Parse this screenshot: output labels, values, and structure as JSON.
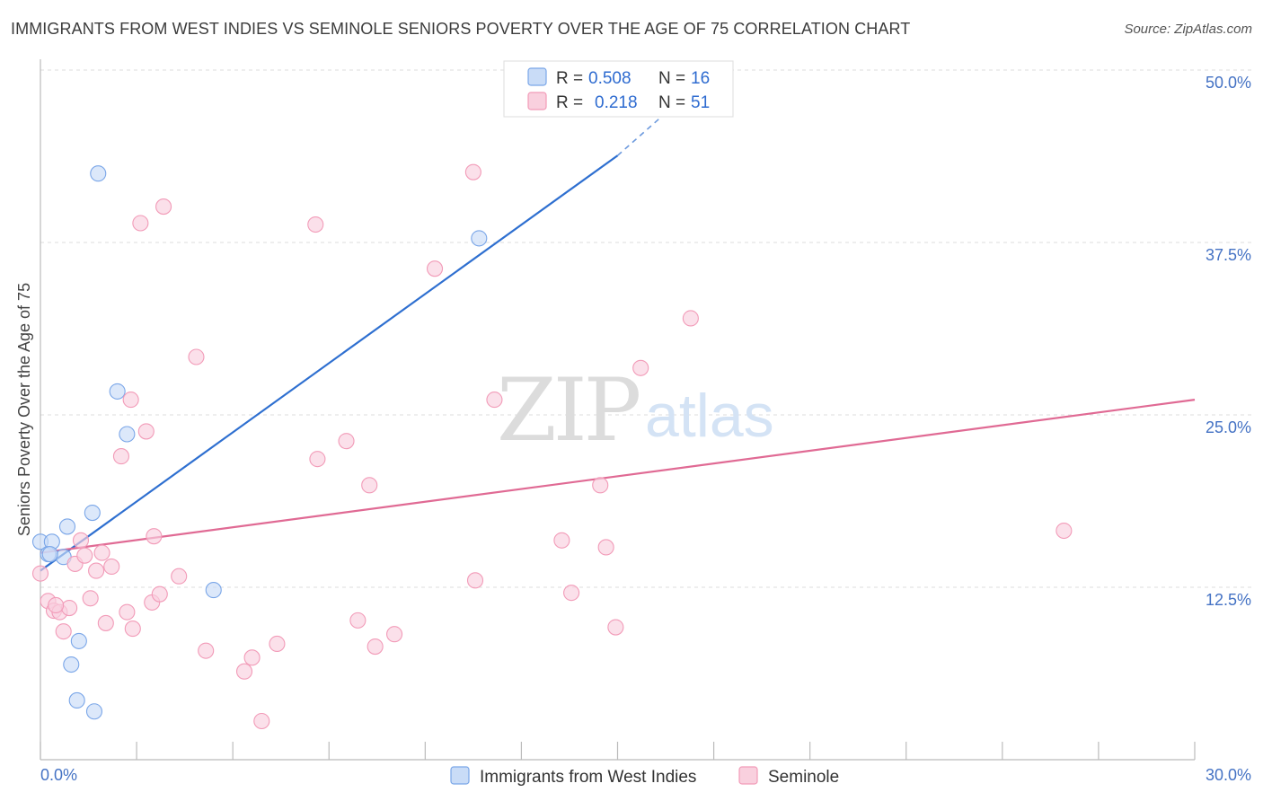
{
  "title": "IMMIGRANTS FROM WEST INDIES VS SEMINOLE SENIORS POVERTY OVER THE AGE OF 75 CORRELATION CHART",
  "source": "Source: ZipAtlas.com",
  "watermark": {
    "zip": "ZIP",
    "atlas": "atlas"
  },
  "chart_data": {
    "type": "scatter",
    "ylabel": "Seniors Poverty Over the Age of 75",
    "xlim": [
      0,
      30
    ],
    "ylim": [
      0,
      50
    ],
    "x_tick_labels": [
      "0.0%",
      "30.0%"
    ],
    "y_ticks": [
      12.5,
      25.0,
      37.5,
      50.0
    ],
    "y_tick_labels": [
      "12.5%",
      "25.0%",
      "37.5%",
      "50.0%"
    ],
    "legend": {
      "r_label": "R =",
      "n_label": "N =",
      "entries": [
        {
          "r": "0.508",
          "n": "16"
        },
        {
          "r": "0.218",
          "n": "51"
        }
      ]
    },
    "series": [
      {
        "name": "Immigrants from West Indies",
        "color": "#7aa6e8",
        "fill": "#c9dcf7",
        "line_color": "#2e6fd0",
        "trend": {
          "x0": 0.0,
          "y0": 13.7,
          "x1": 15.0,
          "y1": 43.8,
          "dash_x1": 16.5,
          "dash_y1": 47.5
        },
        "points": [
          [
            0.0,
            15.8
          ],
          [
            0.3,
            15.8
          ],
          [
            0.2,
            14.9
          ],
          [
            0.6,
            14.7
          ],
          [
            0.7,
            16.9
          ],
          [
            1.35,
            17.9
          ],
          [
            1.5,
            42.5
          ],
          [
            2.0,
            26.7
          ],
          [
            2.25,
            23.6
          ],
          [
            4.5,
            12.3
          ],
          [
            11.4,
            37.8
          ],
          [
            1.0,
            8.6
          ],
          [
            0.8,
            6.9
          ],
          [
            0.95,
            4.3
          ],
          [
            1.4,
            3.5
          ],
          [
            0.25,
            14.9
          ]
        ]
      },
      {
        "name": "Seminole",
        "color": "#f29bb8",
        "fill": "#f9d0de",
        "line_color": "#e06a94",
        "trend": {
          "x0": 0.0,
          "y0": 15.0,
          "x1": 30.0,
          "y1": 26.1
        },
        "points": [
          [
            0.0,
            13.5
          ],
          [
            0.2,
            11.5
          ],
          [
            0.35,
            10.8
          ],
          [
            0.5,
            10.7
          ],
          [
            0.6,
            9.3
          ],
          [
            0.75,
            11.0
          ],
          [
            0.9,
            14.2
          ],
          [
            1.05,
            15.9
          ],
          [
            1.15,
            14.8
          ],
          [
            1.3,
            11.7
          ],
          [
            1.45,
            13.7
          ],
          [
            1.6,
            15.0
          ],
          [
            1.7,
            9.9
          ],
          [
            1.85,
            14.0
          ],
          [
            2.1,
            22.0
          ],
          [
            2.25,
            10.7
          ],
          [
            2.35,
            26.1
          ],
          [
            2.4,
            9.5
          ],
          [
            2.6,
            38.9
          ],
          [
            2.75,
            23.8
          ],
          [
            2.95,
            16.2
          ],
          [
            2.9,
            11.4
          ],
          [
            3.1,
            12.0
          ],
          [
            3.2,
            40.1
          ],
          [
            3.6,
            13.3
          ],
          [
            4.05,
            29.2
          ],
          [
            4.3,
            7.9
          ],
          [
            5.3,
            6.4
          ],
          [
            5.5,
            7.4
          ],
          [
            5.75,
            2.8
          ],
          [
            6.15,
            8.4
          ],
          [
            7.15,
            38.8
          ],
          [
            7.2,
            21.8
          ],
          [
            7.95,
            23.1
          ],
          [
            8.25,
            10.1
          ],
          [
            8.55,
            19.9
          ],
          [
            8.7,
            8.2
          ],
          [
            9.2,
            9.1
          ],
          [
            10.25,
            35.6
          ],
          [
            11.25,
            42.6
          ],
          [
            11.3,
            13.0
          ],
          [
            11.8,
            26.1
          ],
          [
            13.55,
            15.9
          ],
          [
            13.8,
            12.1
          ],
          [
            14.55,
            19.9
          ],
          [
            14.7,
            15.4
          ],
          [
            14.95,
            9.6
          ],
          [
            15.6,
            28.4
          ],
          [
            16.9,
            32.0
          ],
          [
            26.6,
            16.6
          ],
          [
            0.4,
            11.2
          ]
        ]
      }
    ]
  }
}
